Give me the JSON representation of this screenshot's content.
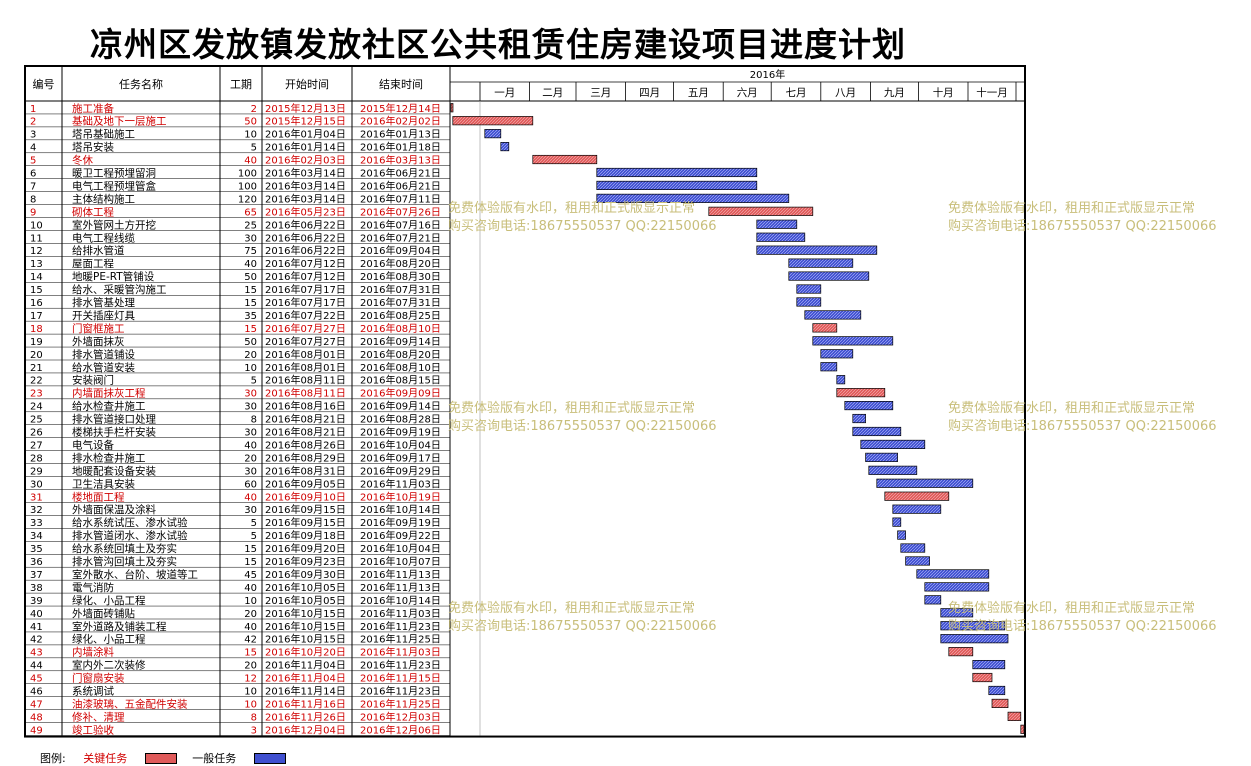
{
  "title": "凉州区发放镇发放社区公共租赁住房建设项目进度计划",
  "chart_data": {
    "type": "gantt",
    "columns": [
      "编号",
      "任务名称",
      "工期",
      "开始时间",
      "结束时间"
    ],
    "year_label": "2016年",
    "months": [
      "一月",
      "二月",
      "三月",
      "四月",
      "五月",
      "六月",
      "七月",
      "八月",
      "九月",
      "十月",
      "十一月"
    ],
    "tasks": [
      {
        "id": "1",
        "name": "施工准备",
        "duration": "2",
        "start": "2015年12月13日",
        "end": "2015年12月14日",
        "critical": true
      },
      {
        "id": "2",
        "name": "基础及地下一层施工",
        "duration": "50",
        "start": "2015年12月15日",
        "end": "2016年02月02日",
        "critical": true
      },
      {
        "id": "3",
        "name": "塔吊基础施工",
        "duration": "10",
        "start": "2016年01月04日",
        "end": "2016年01月13日",
        "critical": false
      },
      {
        "id": "4",
        "name": "塔吊安装",
        "duration": "5",
        "start": "2016年01月14日",
        "end": "2016年01月18日",
        "critical": false
      },
      {
        "id": "5",
        "name": "冬休",
        "duration": "40",
        "start": "2016年02月03日",
        "end": "2016年03月13日",
        "critical": true
      },
      {
        "id": "6",
        "name": "暖卫工程预埋留洞",
        "duration": "100",
        "start": "2016年03月14日",
        "end": "2016年06月21日",
        "critical": false
      },
      {
        "id": "7",
        "name": "电气工程预埋管盒",
        "duration": "100",
        "start": "2016年03月14日",
        "end": "2016年06月21日",
        "critical": false
      },
      {
        "id": "8",
        "name": "主体结构施工",
        "duration": "120",
        "start": "2016年03月14日",
        "end": "2016年07月11日",
        "critical": false
      },
      {
        "id": "9",
        "name": "砌体工程",
        "duration": "65",
        "start": "2016年05月23日",
        "end": "2016年07月26日",
        "critical": true
      },
      {
        "id": "10",
        "name": "室外管网土方开挖",
        "duration": "25",
        "start": "2016年06月22日",
        "end": "2016年07月16日",
        "critical": false
      },
      {
        "id": "11",
        "name": "电气工程线缆",
        "duration": "30",
        "start": "2016年06月22日",
        "end": "2016年07月21日",
        "critical": false
      },
      {
        "id": "12",
        "name": "给排水管道",
        "duration": "75",
        "start": "2016年06月22日",
        "end": "2016年09月04日",
        "critical": false
      },
      {
        "id": "13",
        "name": "屋面工程",
        "duration": "40",
        "start": "2016年07月12日",
        "end": "2016年08月20日",
        "critical": false
      },
      {
        "id": "14",
        "name": "地暖PE-RT管铺设",
        "duration": "50",
        "start": "2016年07月12日",
        "end": "2016年08月30日",
        "critical": false
      },
      {
        "id": "15",
        "name": "给水、采暖管沟施工",
        "duration": "15",
        "start": "2016年07月17日",
        "end": "2016年07月31日",
        "critical": false
      },
      {
        "id": "16",
        "name": "排水管基处理",
        "duration": "15",
        "start": "2016年07月17日",
        "end": "2016年07月31日",
        "critical": false
      },
      {
        "id": "17",
        "name": "开关插座灯具",
        "duration": "35",
        "start": "2016年07月22日",
        "end": "2016年08月25日",
        "critical": false
      },
      {
        "id": "18",
        "name": "门窗框施工",
        "duration": "15",
        "start": "2016年07月27日",
        "end": "2016年08月10日",
        "critical": true
      },
      {
        "id": "19",
        "name": "外墙面抹灰",
        "duration": "50",
        "start": "2016年07月27日",
        "end": "2016年09月14日",
        "critical": false
      },
      {
        "id": "20",
        "name": "排水管道铺设",
        "duration": "20",
        "start": "2016年08月01日",
        "end": "2016年08月20日",
        "critical": false
      },
      {
        "id": "21",
        "name": "给水管道安装",
        "duration": "10",
        "start": "2016年08月01日",
        "end": "2016年08月10日",
        "critical": false
      },
      {
        "id": "22",
        "name": "安装阀门",
        "duration": "5",
        "start": "2016年08月11日",
        "end": "2016年08月15日",
        "critical": false
      },
      {
        "id": "23",
        "name": "内墙面抹灰工程",
        "duration": "30",
        "start": "2016年08月11日",
        "end": "2016年09月09日",
        "critical": true
      },
      {
        "id": "24",
        "name": "给水检查井施工",
        "duration": "30",
        "start": "2016年08月16日",
        "end": "2016年09月14日",
        "critical": false
      },
      {
        "id": "25",
        "name": "排水管道接口处理",
        "duration": "8",
        "start": "2016年08月21日",
        "end": "2016年08月28日",
        "critical": false
      },
      {
        "id": "26",
        "name": "楼梯扶手栏杆安装",
        "duration": "30",
        "start": "2016年08月21日",
        "end": "2016年09月19日",
        "critical": false
      },
      {
        "id": "27",
        "name": "电气设备",
        "duration": "40",
        "start": "2016年08月26日",
        "end": "2016年10月04日",
        "critical": false
      },
      {
        "id": "28",
        "name": "排水检查井施工",
        "duration": "20",
        "start": "2016年08月29日",
        "end": "2016年09月17日",
        "critical": false
      },
      {
        "id": "29",
        "name": "地暖配套设备安装",
        "duration": "30",
        "start": "2016年08月31日",
        "end": "2016年09月29日",
        "critical": false
      },
      {
        "id": "30",
        "name": "卫生洁具安装",
        "duration": "60",
        "start": "2016年09月05日",
        "end": "2016年11月03日",
        "critical": false
      },
      {
        "id": "31",
        "name": "楼地面工程",
        "duration": "40",
        "start": "2016年09月10日",
        "end": "2016年10月19日",
        "critical": true
      },
      {
        "id": "32",
        "name": "外墙面保温及涂料",
        "duration": "30",
        "start": "2016年09月15日",
        "end": "2016年10月14日",
        "critical": false
      },
      {
        "id": "33",
        "name": "给水系统试压、渗水试验",
        "duration": "5",
        "start": "2016年09月15日",
        "end": "2016年09月19日",
        "critical": false
      },
      {
        "id": "34",
        "name": "排水管道闭水、渗水试验",
        "duration": "5",
        "start": "2016年09月18日",
        "end": "2016年09月22日",
        "critical": false
      },
      {
        "id": "35",
        "name": "给水系统回填土及夯实",
        "duration": "15",
        "start": "2016年09月20日",
        "end": "2016年10月04日",
        "critical": false
      },
      {
        "id": "36",
        "name": "排水管沟回填土及夯实",
        "duration": "15",
        "start": "2016年09月23日",
        "end": "2016年10月07日",
        "critical": false
      },
      {
        "id": "37",
        "name": "室外散水、台阶、坡道等工",
        "duration": "45",
        "start": "2016年09月30日",
        "end": "2016年11月13日",
        "critical": false
      },
      {
        "id": "38",
        "name": "電气消防",
        "duration": "40",
        "start": "2016年10月05日",
        "end": "2016年11月13日",
        "critical": false
      },
      {
        "id": "39",
        "name": "绿化、小品工程",
        "duration": "10",
        "start": "2016年10月05日",
        "end": "2016年10月14日",
        "critical": false
      },
      {
        "id": "40",
        "name": "外墙面砖铺贴",
        "duration": "20",
        "start": "2016年10月15日",
        "end": "2016年11月03日",
        "critical": false
      },
      {
        "id": "41",
        "name": "室外道路及铺装工程",
        "duration": "40",
        "start": "2016年10月15日",
        "end": "2016年11月23日",
        "critical": false
      },
      {
        "id": "42",
        "name": "绿化、小品工程",
        "duration": "42",
        "start": "2016年10月15日",
        "end": "2016年11月25日",
        "critical": false
      },
      {
        "id": "43",
        "name": "内墙涂料",
        "duration": "15",
        "start": "2016年10月20日",
        "end": "2016年11月03日",
        "critical": true
      },
      {
        "id": "44",
        "name": "室内外二次装修",
        "duration": "20",
        "start": "2016年11月04日",
        "end": "2016年11月23日",
        "critical": false
      },
      {
        "id": "45",
        "name": "门窗扇安装",
        "duration": "12",
        "start": "2016年11月04日",
        "end": "2016年11月15日",
        "critical": true
      },
      {
        "id": "46",
        "name": "系统调试",
        "duration": "10",
        "start": "2016年11月14日",
        "end": "2016年11月23日",
        "critical": false
      },
      {
        "id": "47",
        "name": "油漆玻璃、五金配件安装",
        "duration": "10",
        "start": "2016年11月16日",
        "end": "2016年11月25日",
        "critical": true
      },
      {
        "id": "48",
        "name": "修补、清理",
        "duration": "8",
        "start": "2016年11月26日",
        "end": "2016年12月03日",
        "critical": true
      },
      {
        "id": "49",
        "name": "竣工验收",
        "duration": "3",
        "start": "2016年12月04日",
        "end": "2016年12月06日",
        "critical": true
      }
    ],
    "colors": {
      "critical_text": "#d00000",
      "critical_bar": "#e05a5a",
      "normal_bar": "#4050d0"
    }
  },
  "legend": {
    "label": "图例:",
    "critical": "关键任务",
    "normal": "一般任务"
  },
  "watermark": {
    "line1": "免费体验版有水印，租用和正式版显示正常",
    "line2": "购买咨询电话:18675550537 QQ:22150066"
  }
}
